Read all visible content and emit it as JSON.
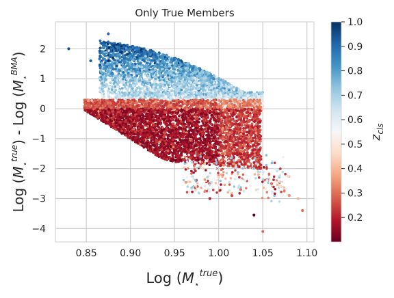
{
  "chart_data": {
    "type": "scatter",
    "title": "Only True Members",
    "xlabel": "Log (M★true)",
    "ylabel": "Log (M★true) - Log (M★BMA)",
    "xlim": [
      0.815,
      1.108
    ],
    "ylim": [
      -4.45,
      2.9
    ],
    "xticks": [
      "0.85",
      "0.90",
      "0.95",
      "1.00",
      "1.05",
      "1.10"
    ],
    "xtick_values": [
      0.85,
      0.9,
      0.95,
      1.0,
      1.05,
      1.1
    ],
    "yticks": [
      "2",
      "1",
      "0",
      "−1",
      "−2",
      "−3",
      "−4"
    ],
    "ytick_values": [
      2,
      1,
      0,
      -1,
      -2,
      -3,
      -4
    ],
    "grid": true,
    "colormap": "RdBu",
    "colorbar": {
      "label": "z_cls",
      "range": [
        0.1,
        1.0
      ],
      "ticks": [
        "0.2",
        "0.3",
        "0.4",
        "0.5",
        "0.6",
        "0.7",
        "0.8",
        "0.9",
        "1.0"
      ],
      "tick_values": [
        0.2,
        0.3,
        0.4,
        0.5,
        0.6,
        0.7,
        0.8,
        0.9,
        1.0
      ]
    },
    "density_regions": [
      {
        "name": "high-z-upper-cloud",
        "x_range": [
          0.86,
          1.04
        ],
        "y_range": [
          0.2,
          2.5
        ],
        "z_range": [
          0.65,
          1.0
        ]
      },
      {
        "name": "mid-z-band",
        "x_range": [
          0.88,
          1.05
        ],
        "y_range": [
          -0.2,
          0.6
        ],
        "z_range": [
          0.4,
          0.65
        ]
      },
      {
        "name": "low-z-lower-wedge",
        "x_range": [
          0.845,
          1.05
        ],
        "y_range": [
          -1.8,
          0.3
        ],
        "z_range": [
          0.1,
          0.35
        ]
      }
    ],
    "outlier_points": [
      [
        0.83,
        2.0,
        0.95
      ],
      [
        0.855,
        1.6,
        0.92
      ],
      [
        0.875,
        2.5,
        0.9
      ],
      [
        1.04,
        -2.0,
        0.7
      ],
      [
        1.045,
        -2.2,
        0.4
      ],
      [
        1.06,
        -2.5,
        0.3
      ],
      [
        1.07,
        -2.6,
        0.5
      ],
      [
        1.08,
        -2.9,
        0.35
      ],
      [
        1.09,
        -3.0,
        0.4
      ],
      [
        1.095,
        -3.4,
        0.3
      ],
      [
        1.04,
        -3.55,
        0.1
      ],
      [
        1.05,
        -4.1,
        0.3
      ],
      [
        1.03,
        -2.4,
        0.6
      ],
      [
        1.025,
        -2.7,
        0.3
      ],
      [
        1.015,
        -2.9,
        0.25
      ],
      [
        0.99,
        -3.0,
        0.2
      ],
      [
        1.0,
        -2.3,
        0.45
      ],
      [
        1.055,
        -2.4,
        0.6
      ]
    ],
    "summary": "Mostly red (low z) points sit in a wedge below zero, blue (high z) points in a cloud above zero."
  }
}
